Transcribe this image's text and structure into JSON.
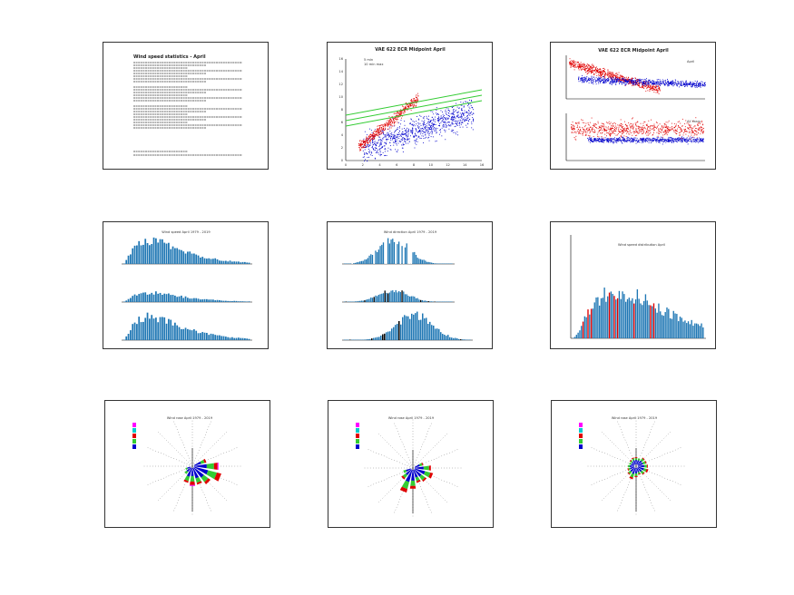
{
  "panels": [
    {
      "id": "text",
      "title": "Wind speed statistics - April"
    },
    {
      "id": "scatter",
      "title": "VAE 622 ECR Midpoint April",
      "legend": [
        "5 min",
        "10 min max"
      ]
    },
    {
      "id": "timeseries",
      "title": "VAE 622 ECR Midpoint April",
      "legend": [
        "April",
        "All Years"
      ]
    },
    {
      "id": "hist3",
      "title": "Wind speed April 1979 - 2019"
    },
    {
      "id": "hist3b",
      "title": "Wind direction April 1979 - 2019"
    },
    {
      "id": "hist1",
      "title": "Wind speed distribution April"
    },
    {
      "id": "rose1",
      "title": "Wind rose April 1979 - 2019"
    },
    {
      "id": "rose2",
      "title": "Wind rose April 1979 - 2019"
    },
    {
      "id": "rose3",
      "title": "Wind rose April 1979 - 2019"
    }
  ],
  "chart_data": [
    {
      "type": "scatter",
      "title": "VAE 622 ECR Midpoint April",
      "x_ticks": [
        "0",
        "2",
        "4",
        "6",
        "8",
        "10",
        "12",
        "14",
        "16"
      ],
      "y_ticks": [
        "0",
        "2",
        "4",
        "6",
        "8",
        "10",
        "12",
        "14",
        "16"
      ],
      "series": [
        {
          "name": "5 min",
          "color": "#e00000"
        },
        {
          "name": "10 min max",
          "color": "#0000cc"
        }
      ],
      "fit_color": "#33cc33"
    },
    {
      "type": "histogram",
      "title": "Wind speed distribution April",
      "color": "#1f77b4"
    }
  ],
  "colors": {
    "red": "#e00000",
    "blue": "#0000cc",
    "green": "#33cc33",
    "hist": "#1f77b4",
    "magenta": "#ff00ff",
    "cyan": "#00cccc"
  }
}
